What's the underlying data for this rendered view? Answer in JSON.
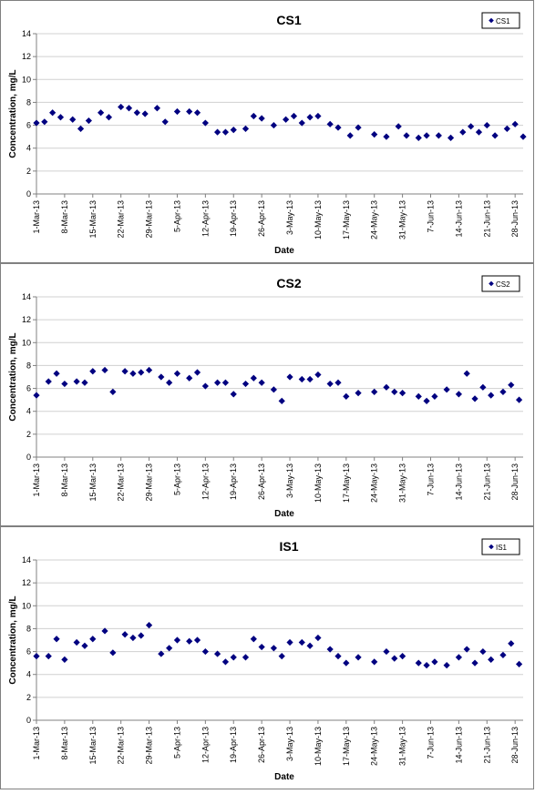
{
  "chart_data": [
    {
      "type": "scatter",
      "title": "CS1",
      "xlabel": "Date",
      "ylabel": "Concentration, mg/L",
      "ylim": [
        0,
        14
      ],
      "yticks": [
        0,
        2,
        4,
        6,
        8,
        10,
        12,
        14
      ],
      "xlim": [
        "2013-03-01",
        "2013-06-30"
      ],
      "xticks": [
        "1-Mar-13",
        "8-Mar-13",
        "15-Mar-13",
        "22-Mar-13",
        "29-Mar-13",
        "5-Apr-13",
        "12-Apr-13",
        "19-Apr-13",
        "26-Apr-13",
        "3-May-13",
        "10-May-13",
        "17-May-13",
        "24-May-13",
        "31-May-13",
        "7-Jun-13",
        "14-Jun-13",
        "21-Jun-13",
        "28-Jun-13"
      ],
      "grid": "horizontal",
      "legend_position": "top-right",
      "series": [
        {
          "name": "CS1",
          "color": "#000080",
          "marker": "diamond",
          "points": [
            [
              "2013-03-01",
              6.2
            ],
            [
              "2013-03-03",
              6.3
            ],
            [
              "2013-03-05",
              7.1
            ],
            [
              "2013-03-07",
              6.7
            ],
            [
              "2013-03-10",
              6.5
            ],
            [
              "2013-03-12",
              5.7
            ],
            [
              "2013-03-14",
              6.4
            ],
            [
              "2013-03-17",
              7.1
            ],
            [
              "2013-03-19",
              6.7
            ],
            [
              "2013-03-22",
              7.6
            ],
            [
              "2013-03-24",
              7.5
            ],
            [
              "2013-03-26",
              7.1
            ],
            [
              "2013-03-28",
              7.0
            ],
            [
              "2013-03-31",
              7.5
            ],
            [
              "2013-04-02",
              6.3
            ],
            [
              "2013-04-05",
              7.2
            ],
            [
              "2013-04-08",
              7.2
            ],
            [
              "2013-04-10",
              7.1
            ],
            [
              "2013-04-12",
              6.2
            ],
            [
              "2013-04-15",
              5.4
            ],
            [
              "2013-04-17",
              5.4
            ],
            [
              "2013-04-19",
              5.6
            ],
            [
              "2013-04-22",
              5.7
            ],
            [
              "2013-04-24",
              6.8
            ],
            [
              "2013-04-26",
              6.6
            ],
            [
              "2013-04-29",
              6.0
            ],
            [
              "2013-05-02",
              6.5
            ],
            [
              "2013-05-04",
              6.8
            ],
            [
              "2013-05-06",
              6.2
            ],
            [
              "2013-05-08",
              6.7
            ],
            [
              "2013-05-10",
              6.8
            ],
            [
              "2013-05-13",
              6.1
            ],
            [
              "2013-05-15",
              5.8
            ],
            [
              "2013-05-18",
              5.1
            ],
            [
              "2013-05-20",
              5.8
            ],
            [
              "2013-05-24",
              5.2
            ],
            [
              "2013-05-27",
              5.0
            ],
            [
              "2013-05-30",
              5.9
            ],
            [
              "2013-06-01",
              5.1
            ],
            [
              "2013-06-04",
              4.9
            ],
            [
              "2013-06-06",
              5.1
            ],
            [
              "2013-06-09",
              5.1
            ],
            [
              "2013-06-12",
              4.9
            ],
            [
              "2013-06-15",
              5.4
            ],
            [
              "2013-06-17",
              5.9
            ],
            [
              "2013-06-19",
              5.4
            ],
            [
              "2013-06-21",
              6.0
            ],
            [
              "2013-06-23",
              5.1
            ],
            [
              "2013-06-26",
              5.7
            ],
            [
              "2013-06-28",
              6.1
            ],
            [
              "2013-06-30",
              5.0
            ]
          ]
        }
      ]
    },
    {
      "type": "scatter",
      "title": "CS2",
      "xlabel": "Date",
      "ylabel": "Concentration, mg/L",
      "ylim": [
        0,
        14
      ],
      "yticks": [
        0,
        2,
        4,
        6,
        8,
        10,
        12,
        14
      ],
      "xlim": [
        "2013-03-01",
        "2013-06-30"
      ],
      "xticks": [
        "1-Mar-13",
        "8-Mar-13",
        "15-Mar-13",
        "22-Mar-13",
        "29-Mar-13",
        "5-Apr-13",
        "12-Apr-13",
        "19-Apr-13",
        "26-Apr-13",
        "3-May-13",
        "10-May-13",
        "17-May-13",
        "24-May-13",
        "31-May-13",
        "7-Jun-13",
        "14-Jun-13",
        "21-Jun-13",
        "28-Jun-13"
      ],
      "grid": "horizontal",
      "legend_position": "top-right",
      "series": [
        {
          "name": "CS2",
          "color": "#000080",
          "marker": "diamond",
          "points": [
            [
              "2013-03-01",
              5.4
            ],
            [
              "2013-03-04",
              6.6
            ],
            [
              "2013-03-06",
              7.3
            ],
            [
              "2013-03-08",
              6.4
            ],
            [
              "2013-03-11",
              6.6
            ],
            [
              "2013-03-13",
              6.5
            ],
            [
              "2013-03-15",
              7.5
            ],
            [
              "2013-03-18",
              7.6
            ],
            [
              "2013-03-20",
              5.7
            ],
            [
              "2013-03-23",
              7.5
            ],
            [
              "2013-03-25",
              7.3
            ],
            [
              "2013-03-27",
              7.4
            ],
            [
              "2013-03-29",
              7.6
            ],
            [
              "2013-04-01",
              7.0
            ],
            [
              "2013-04-03",
              6.5
            ],
            [
              "2013-04-05",
              7.3
            ],
            [
              "2013-04-08",
              6.9
            ],
            [
              "2013-04-10",
              7.4
            ],
            [
              "2013-04-12",
              6.2
            ],
            [
              "2013-04-15",
              6.5
            ],
            [
              "2013-04-17",
              6.5
            ],
            [
              "2013-04-19",
              5.5
            ],
            [
              "2013-04-22",
              6.4
            ],
            [
              "2013-04-24",
              6.9
            ],
            [
              "2013-04-26",
              6.5
            ],
            [
              "2013-04-29",
              5.9
            ],
            [
              "2013-05-01",
              4.9
            ],
            [
              "2013-05-03",
              7.0
            ],
            [
              "2013-05-06",
              6.8
            ],
            [
              "2013-05-08",
              6.8
            ],
            [
              "2013-05-10",
              7.2
            ],
            [
              "2013-05-13",
              6.4
            ],
            [
              "2013-05-15",
              6.5
            ],
            [
              "2013-05-17",
              5.3
            ],
            [
              "2013-05-20",
              5.6
            ],
            [
              "2013-05-24",
              5.7
            ],
            [
              "2013-05-27",
              6.1
            ],
            [
              "2013-05-29",
              5.7
            ],
            [
              "2013-05-31",
              5.6
            ],
            [
              "2013-06-04",
              5.3
            ],
            [
              "2013-06-06",
              4.9
            ],
            [
              "2013-06-08",
              5.3
            ],
            [
              "2013-06-11",
              5.9
            ],
            [
              "2013-06-14",
              5.5
            ],
            [
              "2013-06-16",
              7.3
            ],
            [
              "2013-06-18",
              5.1
            ],
            [
              "2013-06-20",
              6.1
            ],
            [
              "2013-06-22",
              5.4
            ],
            [
              "2013-06-25",
              5.7
            ],
            [
              "2013-06-27",
              6.3
            ],
            [
              "2013-06-29",
              5.0
            ]
          ]
        }
      ]
    },
    {
      "type": "scatter",
      "title": "IS1",
      "xlabel": "Date",
      "ylabel": "Concentration, mg/L",
      "ylim": [
        0,
        14
      ],
      "yticks": [
        0,
        2,
        4,
        6,
        8,
        10,
        12,
        14
      ],
      "xlim": [
        "2013-03-01",
        "2013-06-30"
      ],
      "xticks": [
        "1-Mar-13",
        "8-Mar-13",
        "15-Mar-13",
        "22-Mar-13",
        "29-Mar-13",
        "5-Apr-13",
        "12-Apr-13",
        "19-Apr-13",
        "26-Apr-13",
        "3-May-13",
        "10-May-13",
        "17-May-13",
        "24-May-13",
        "31-May-13",
        "7-Jun-13",
        "14-Jun-13",
        "21-Jun-13",
        "28-Jun-13"
      ],
      "grid": "horizontal",
      "legend_position": "top-right",
      "series": [
        {
          "name": "IS1",
          "color": "#000080",
          "marker": "diamond",
          "points": [
            [
              "2013-03-01",
              5.6
            ],
            [
              "2013-03-04",
              5.6
            ],
            [
              "2013-03-06",
              7.1
            ],
            [
              "2013-03-08",
              5.3
            ],
            [
              "2013-03-11",
              6.8
            ],
            [
              "2013-03-13",
              6.5
            ],
            [
              "2013-03-15",
              7.1
            ],
            [
              "2013-03-18",
              7.8
            ],
            [
              "2013-03-20",
              5.9
            ],
            [
              "2013-03-23",
              7.5
            ],
            [
              "2013-03-25",
              7.2
            ],
            [
              "2013-03-27",
              7.4
            ],
            [
              "2013-03-29",
              8.3
            ],
            [
              "2013-04-01",
              5.8
            ],
            [
              "2013-04-03",
              6.3
            ],
            [
              "2013-04-05",
              7.0
            ],
            [
              "2013-04-08",
              6.9
            ],
            [
              "2013-04-10",
              7.0
            ],
            [
              "2013-04-12",
              6.0
            ],
            [
              "2013-04-15",
              5.8
            ],
            [
              "2013-04-17",
              5.1
            ],
            [
              "2013-04-19",
              5.5
            ],
            [
              "2013-04-22",
              5.5
            ],
            [
              "2013-04-24",
              7.1
            ],
            [
              "2013-04-26",
              6.4
            ],
            [
              "2013-04-29",
              6.3
            ],
            [
              "2013-05-01",
              5.6
            ],
            [
              "2013-05-03",
              6.8
            ],
            [
              "2013-05-06",
              6.8
            ],
            [
              "2013-05-08",
              6.5
            ],
            [
              "2013-05-10",
              7.2
            ],
            [
              "2013-05-13",
              6.2
            ],
            [
              "2013-05-15",
              5.6
            ],
            [
              "2013-05-17",
              5.0
            ],
            [
              "2013-05-20",
              5.5
            ],
            [
              "2013-05-24",
              5.1
            ],
            [
              "2013-05-27",
              6.0
            ],
            [
              "2013-05-29",
              5.4
            ],
            [
              "2013-05-31",
              5.6
            ],
            [
              "2013-06-04",
              5.0
            ],
            [
              "2013-06-06",
              4.8
            ],
            [
              "2013-06-08",
              5.1
            ],
            [
              "2013-06-11",
              4.8
            ],
            [
              "2013-06-14",
              5.5
            ],
            [
              "2013-06-16",
              6.2
            ],
            [
              "2013-06-18",
              5.0
            ],
            [
              "2013-06-20",
              6.0
            ],
            [
              "2013-06-22",
              5.3
            ],
            [
              "2013-06-25",
              5.7
            ],
            [
              "2013-06-27",
              6.7
            ],
            [
              "2013-06-29",
              4.9
            ]
          ]
        }
      ]
    }
  ]
}
